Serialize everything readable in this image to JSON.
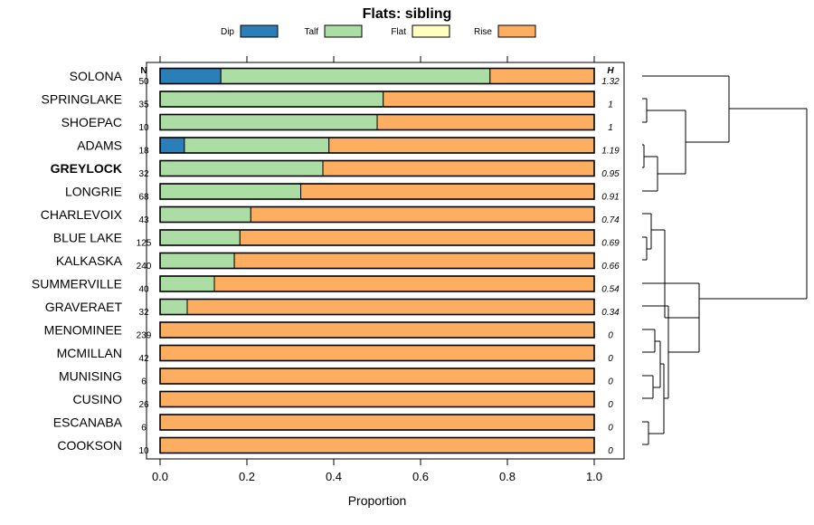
{
  "chart_data": {
    "type": "bar",
    "stacked": true,
    "orientation": "horizontal",
    "title": "Flats: sibling",
    "xlabel": "Proportion",
    "xlim": [
      0,
      1
    ],
    "xticks": [
      "0.0",
      "0.2",
      "0.4",
      "0.6",
      "0.8",
      "1.0"
    ],
    "n_header": "N",
    "h_header": "H",
    "highlight": "GREYLOCK",
    "legend": [
      {
        "name": "Dip",
        "color": "#2b7fb8"
      },
      {
        "name": "Talf",
        "color": "#abdda4"
      },
      {
        "name": "Flat",
        "color": "#ffffbf"
      },
      {
        "name": "Rise",
        "color": "#fdae61"
      }
    ],
    "categories": [
      "SOLONA",
      "SPRINGLAKE",
      "SHOEPAC",
      "ADAMS",
      "GREYLOCK",
      "LONGRIE",
      "CHARLEVOIX",
      "BLUE LAKE",
      "KALKASKA",
      "SUMMERVILLE",
      "GRAVERAET",
      "MENOMINEE",
      "MCMILLAN",
      "MUNISING",
      "CUSINO",
      "ESCANABA",
      "COOKSON"
    ],
    "n": [
      "50",
      "35",
      "10",
      "18",
      "32",
      "68",
      "43",
      "125",
      "240",
      "40",
      "32",
      "239",
      "42",
      "6",
      "26",
      "6",
      "10"
    ],
    "h": [
      "1.32",
      "1",
      "1",
      "1.19",
      "0.95",
      "0.91",
      "0.74",
      "0.69",
      "0.66",
      "0.54",
      "0.34",
      "0",
      "0",
      "0",
      "0",
      "0",
      "0"
    ],
    "series": [
      {
        "name": "Dip",
        "values": [
          0.14,
          0,
          0,
          0.056,
          0,
          0,
          0,
          0,
          0,
          0,
          0,
          0,
          0,
          0,
          0,
          0,
          0
        ]
      },
      {
        "name": "Talf",
        "values": [
          0.62,
          0.514,
          0.5,
          0.333,
          0.375,
          0.324,
          0.209,
          0.184,
          0.171,
          0.125,
          0.0625,
          0,
          0,
          0,
          0,
          0,
          0
        ]
      },
      {
        "name": "Flat",
        "values": [
          0,
          0,
          0,
          0,
          0,
          0,
          0,
          0,
          0,
          0,
          0,
          0,
          0,
          0,
          0,
          0,
          0
        ]
      },
      {
        "name": "Rise",
        "values": [
          0.24,
          0.486,
          0.5,
          0.611,
          0.625,
          0.676,
          0.791,
          0.816,
          0.829,
          0.875,
          0.9375,
          1,
          1,
          1,
          1,
          1,
          1
        ]
      }
    ]
  }
}
